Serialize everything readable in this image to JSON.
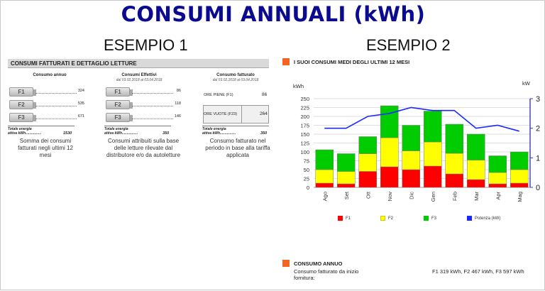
{
  "title": "CONSUMI ANNUALI (kWh)",
  "example1": {
    "heading": "ESEMPIO 1",
    "section_bar": "CONSUMI FATTURATI E DETTAGLIO LETTURE",
    "col1": {
      "header": "Consumo annuo",
      "bands": [
        {
          "label": "F1",
          "value": "324"
        },
        {
          "label": "F2",
          "value": "535"
        },
        {
          "label": "F3",
          "value": "671"
        }
      ],
      "total_label_1": "Totale energia",
      "total_label_2": "attiva kWh................",
      "total_value": "1530",
      "caption": "Somma dei consumi fatturati negli ultimi 12 mesi"
    },
    "col2": {
      "header": "Consumi Effettivi",
      "period": "dal 03.02.2018 al 03.04.2018",
      "bands": [
        {
          "label": "F1",
          "value": "86"
        },
        {
          "label": "F2",
          "value": "118"
        },
        {
          "label": "F3",
          "value": "146"
        }
      ],
      "total_label_1": "Totale energia",
      "total_label_2": "attiva kWh................",
      "total_value": "350",
      "caption": "Consumi attribuiti sulla base delle letture rilevate dal distributore e/o da autoletture"
    },
    "col3": {
      "header": "Consumo fatturato",
      "period": "dal 03.02.2018 al 03.04.2018",
      "row1_label": "ORE PIENE (F1)",
      "row1_value": "86",
      "row2_label": "ORE VUOTE (F23)",
      "row2_value": "264",
      "total_label_1": "Totale energia",
      "total_label_2": "attiva kWh................",
      "total_value": "350",
      "caption": "Consumo fatturato nel periodo in base alla tariffa applicata"
    }
  },
  "example2": {
    "heading": "ESEMPIO 2",
    "chart_header": "I SUOI CONSUMI MEDI DEGLI ULTIMI 12 MESI",
    "left_unit": "kWh",
    "right_unit": "kW",
    "legend": {
      "f1": "F1",
      "f2": "F2",
      "f3": "F3",
      "power": "Potenza (kW)"
    },
    "consumo_title": "CONSUMO ANNUO",
    "consumo_text_1": "Consumo fatturato da inizio",
    "consumo_text_2": "fornitura:",
    "consumo_values": "F1 319 kWh, F2 467 kWh, F3 597 kWh",
    "colors": {
      "f1": "#ff0000",
      "f2": "#ffff00",
      "f3": "#00cc00",
      "power": "#1a2aff",
      "accent": "#f26522"
    }
  },
  "chart_data": {
    "type": "bar",
    "categories": [
      "Ago",
      "Set",
      "Ott",
      "Nov",
      "Dic",
      "Gen",
      "Feb",
      "Mar",
      "Apr",
      "Mag"
    ],
    "series": [
      {
        "name": "F1",
        "values": [
          12,
          10,
          45,
          58,
          50,
          60,
          38,
          22,
          10,
          12
        ]
      },
      {
        "name": "F2",
        "values": [
          38,
          35,
          50,
          82,
          53,
          68,
          58,
          55,
          32,
          38
        ]
      },
      {
        "name": "F3",
        "values": [
          56,
          50,
          48,
          90,
          72,
          87,
          82,
          73,
          47,
          50
        ]
      },
      {
        "name": "Potenza (kW)",
        "axis": "right",
        "type": "line",
        "values": [
          2.0,
          2.0,
          2.4,
          2.5,
          2.7,
          2.6,
          2.6,
          2.0,
          2.1,
          1.9
        ]
      }
    ],
    "ylabel": "kWh",
    "y2label": "kW",
    "ylim": [
      0,
      250
    ],
    "y2lim": [
      0,
      3
    ],
    "yticks": [
      0,
      25,
      50,
      75,
      100,
      125,
      150,
      175,
      200,
      225,
      250
    ],
    "y2ticks": [
      0,
      1,
      2,
      3
    ],
    "grid": true,
    "stacked": true,
    "legend_position": "bottom"
  }
}
